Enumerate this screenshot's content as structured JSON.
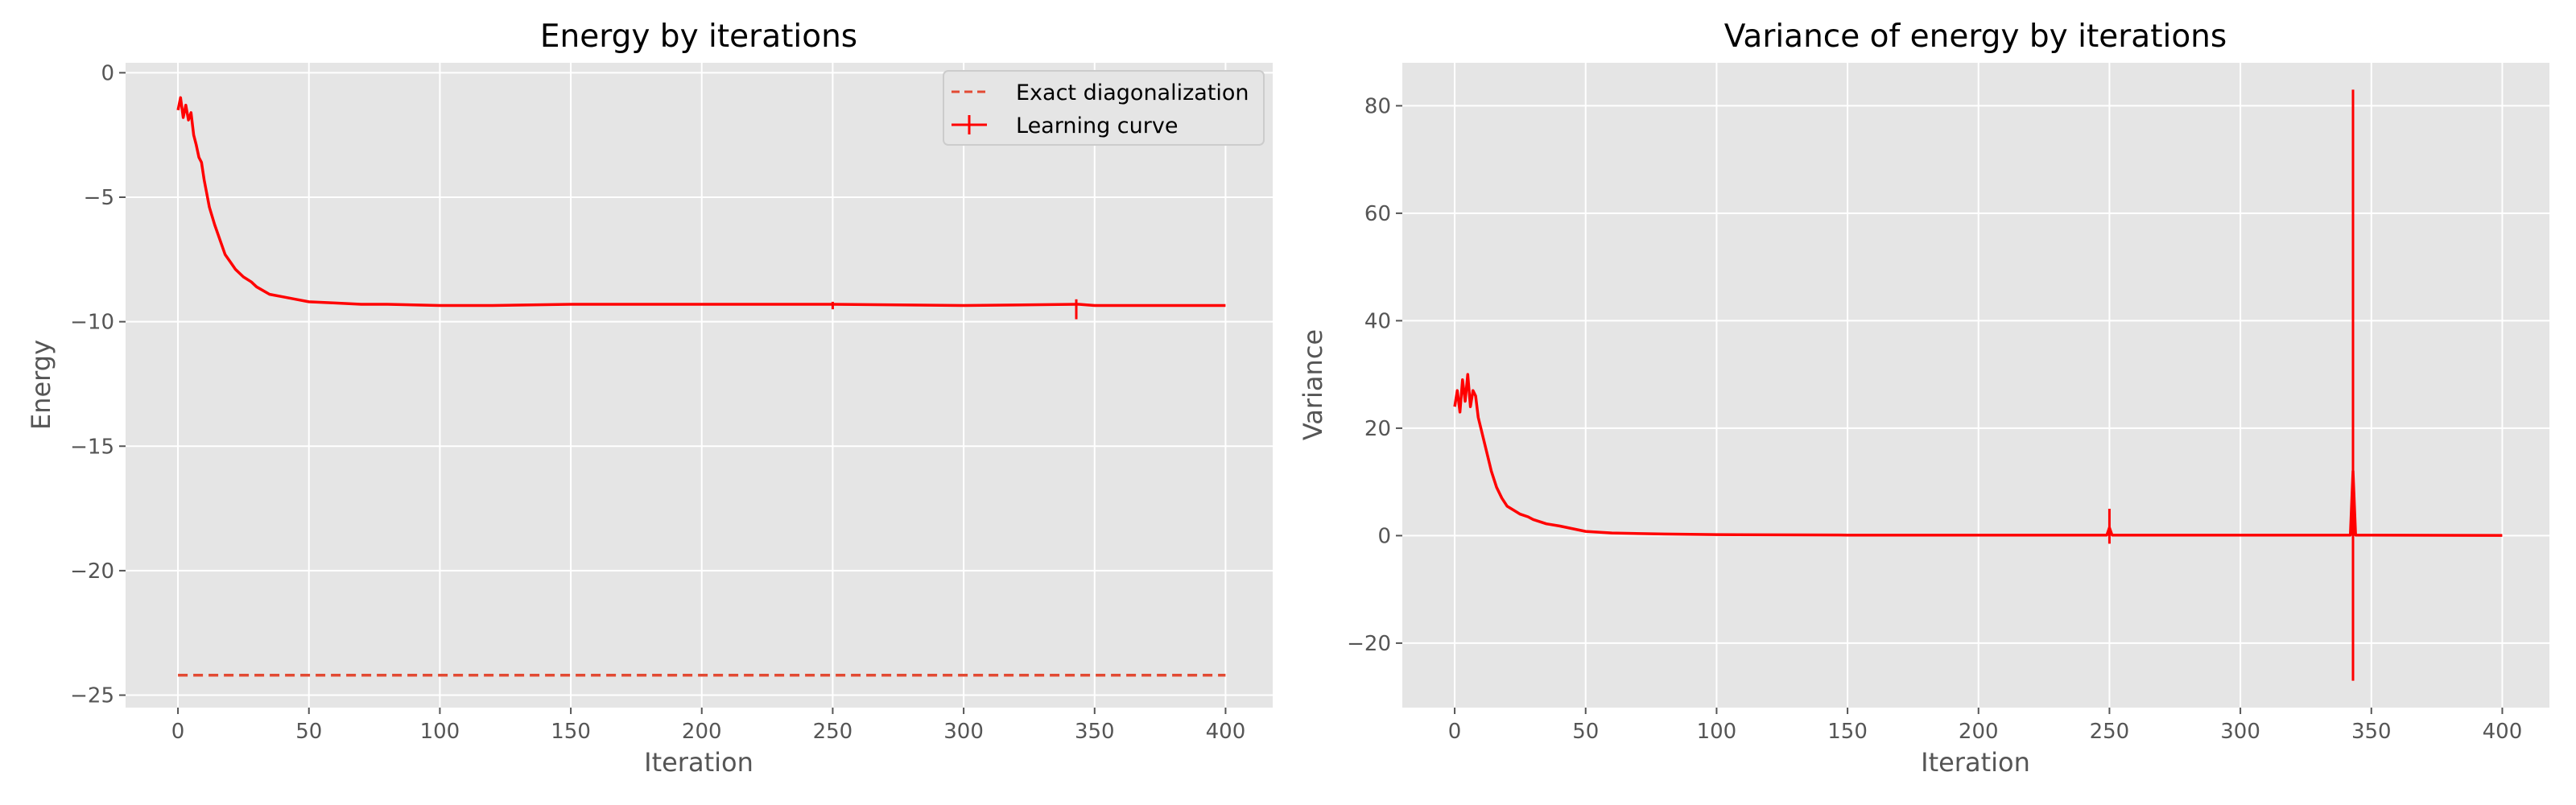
{
  "colors": {
    "series": "#ff0000",
    "exact": "#e24a33",
    "panel": "#e5e5e5",
    "grid": "#ffffff",
    "text": "#555555"
  },
  "chart_data": [
    {
      "type": "line",
      "title": "Energy by iterations",
      "xlabel": "Iteration",
      "ylabel": "Energy",
      "xlim": [
        -20,
        418
      ],
      "ylim": [
        -25.5,
        0.4
      ],
      "xticks": [
        0,
        50,
        100,
        150,
        200,
        250,
        300,
        350,
        400
      ],
      "xtick_labels": [
        "0",
        "50",
        "100",
        "150",
        "200",
        "250",
        "300",
        "350",
        "400"
      ],
      "yticks": [
        0,
        -5,
        -10,
        -15,
        -20,
        -25
      ],
      "ytick_labels": [
        "0",
        "−5",
        "−10",
        "−15",
        "−20",
        "−25"
      ],
      "grid": true,
      "legend": {
        "position": "top-right",
        "entries": [
          "Exact diagonalization",
          "Learning curve"
        ]
      },
      "series": [
        {
          "name": "Exact diagonalization",
          "style": "dashed",
          "x": [
            0,
            400
          ],
          "y": [
            -24.2,
            -24.2
          ]
        },
        {
          "name": "Learning curve",
          "style": "solid-errorbar",
          "x": [
            0,
            1,
            2,
            3,
            4,
            5,
            6,
            7,
            8,
            9,
            10,
            12,
            14,
            16,
            18,
            20,
            22,
            25,
            28,
            30,
            35,
            40,
            45,
            50,
            60,
            70,
            80,
            100,
            120,
            150,
            200,
            250,
            300,
            343,
            344,
            350,
            400
          ],
          "y": [
            -1.5,
            -1.0,
            -1.8,
            -1.3,
            -1.9,
            -1.6,
            -2.5,
            -2.9,
            -3.4,
            -3.6,
            -4.3,
            -5.4,
            -6.1,
            -6.7,
            -7.3,
            -7.6,
            -7.9,
            -8.2,
            -8.4,
            -8.6,
            -8.9,
            -9.0,
            -9.1,
            -9.2,
            -9.25,
            -9.3,
            -9.3,
            -9.35,
            -9.35,
            -9.3,
            -9.3,
            -9.3,
            -9.35,
            -9.3,
            -9.3,
            -9.35,
            -9.35
          ],
          "error_spikes": [
            {
              "x": 250,
              "low": -9.5,
              "high": -9.2
            },
            {
              "x": 343,
              "low": -9.9,
              "high": -9.1
            }
          ]
        }
      ]
    },
    {
      "type": "line",
      "title": "Variance of energy by iterations",
      "xlabel": "Iteration",
      "ylabel": "Variance",
      "xlim": [
        -20,
        418
      ],
      "ylim": [
        -32,
        88
      ],
      "xticks": [
        0,
        50,
        100,
        150,
        200,
        250,
        300,
        350,
        400
      ],
      "xtick_labels": [
        "0",
        "50",
        "100",
        "150",
        "200",
        "250",
        "300",
        "350",
        "400"
      ],
      "yticks": [
        80,
        60,
        40,
        20,
        0,
        -20
      ],
      "ytick_labels": [
        "80",
        "60",
        "40",
        "20",
        "0",
        "−20"
      ],
      "grid": true,
      "series": [
        {
          "style": "solid",
          "x": [
            0,
            1,
            2,
            3,
            4,
            5,
            6,
            7,
            8,
            9,
            10,
            12,
            14,
            16,
            18,
            20,
            25,
            28,
            30,
            35,
            40,
            50,
            60,
            80,
            100,
            150,
            200,
            249,
            250,
            251,
            300,
            342,
            343,
            344,
            350,
            400
          ],
          "y": [
            24,
            27,
            23,
            29,
            25,
            30,
            24,
            27,
            26,
            22,
            20,
            16,
            12,
            9,
            7,
            5.5,
            4,
            3.5,
            3,
            2.2,
            1.8,
            0.8,
            0.5,
            0.3,
            0.2,
            0.1,
            0.1,
            0.1,
            1.5,
            0.1,
            0.1,
            0.1,
            12,
            0.1,
            0.1,
            0.05
          ],
          "error_spikes": [
            {
              "x": 250,
              "low": -1.5,
              "high": 5
            },
            {
              "x": 343,
              "low": -27,
              "high": 83
            }
          ]
        }
      ]
    }
  ]
}
